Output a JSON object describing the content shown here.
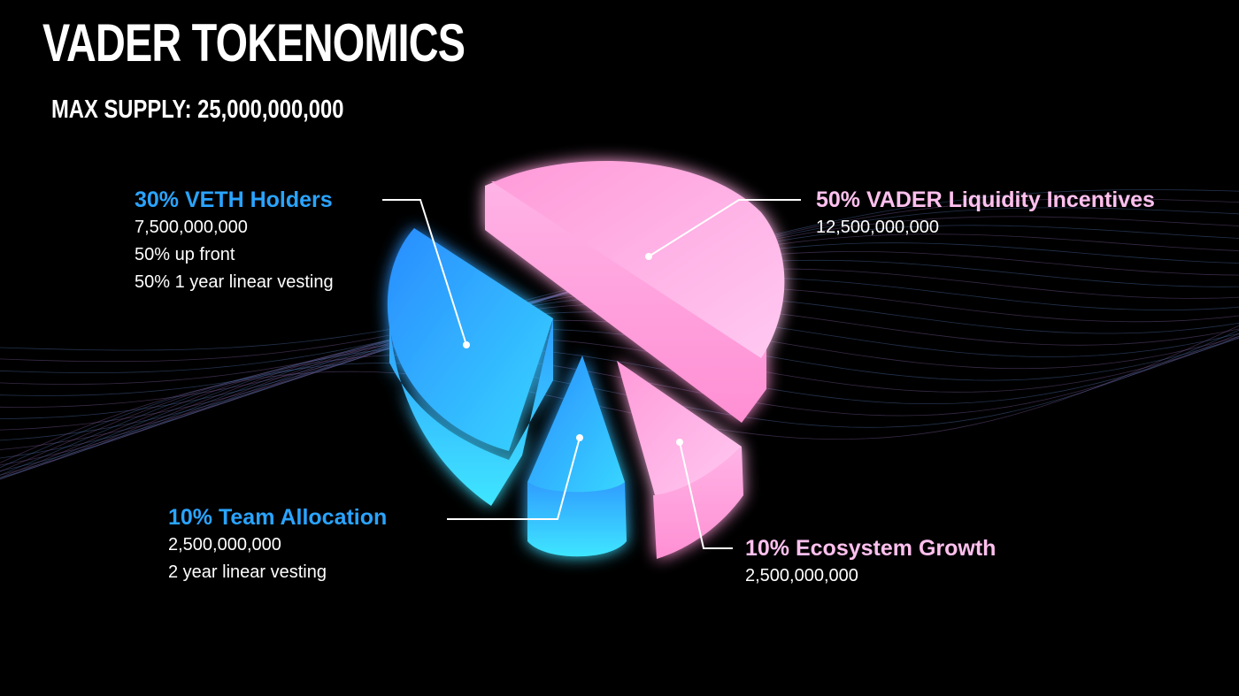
{
  "header": {
    "title": "VADER TOKENOMICS",
    "subtitle": "MAX SUPPLY: 25,000,000,000"
  },
  "colors": {
    "blue": "#2aa4ff",
    "cyan": "#3fe6ff",
    "pink": "#ff9ad8",
    "light_pink": "#ffc0ee",
    "background": "#000000"
  },
  "chart_data": {
    "type": "pie",
    "title": "VADER TOKENOMICS",
    "subtitle": "MAX SUPPLY: 25,000,000,000",
    "slices": [
      {
        "label": "VADER Liquidity Incentives",
        "percent": 50,
        "value": 12500000000,
        "color": "#ff9ad8",
        "heading": "50% VADER Liquidity Incentives",
        "lines": [
          "12,500,000,000"
        ]
      },
      {
        "label": "VETH Holders",
        "percent": 30,
        "value": 7500000000,
        "color": "#2aa4ff",
        "heading": "30% VETH Holders",
        "lines": [
          "7,500,000,000",
          "50% up front",
          "50% 1 year linear vesting"
        ]
      },
      {
        "label": "Team Allocation",
        "percent": 10,
        "value": 2500000000,
        "color": "#2aa4ff",
        "heading": "10% Team Allocation",
        "lines": [
          "2,500,000,000",
          "2 year linear vesting"
        ]
      },
      {
        "label": "Ecosystem Growth",
        "percent": 10,
        "value": 2500000000,
        "color": "#ff9ad8",
        "heading": "10% Ecosystem Growth",
        "lines": [
          "2,500,000,000"
        ]
      }
    ]
  }
}
